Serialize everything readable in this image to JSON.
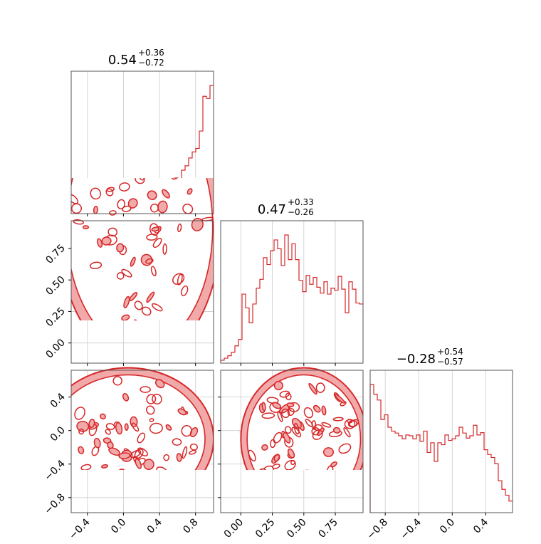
{
  "colors": {
    "accent": "#d62728",
    "accent_fill": "#f1a9aa",
    "grid": "#cccccc",
    "axis": "#000000"
  },
  "chart_data": {
    "type": "corner",
    "parameters": [
      "",
      "",
      ""
    ],
    "grid": true,
    "titles": [
      {
        "median": "0.54",
        "plus": "+0.36",
        "minus": "−0.72"
      },
      {
        "median": "0.47",
        "plus": "+0.33",
        "minus": "−0.26"
      },
      {
        "median": "−0.28",
        "plus": "+0.54",
        "minus": "−0.57"
      }
    ],
    "axes": [
      {
        "range": [
          -0.58,
          1.0
        ],
        "ticks": [
          -0.4,
          0.0,
          0.4,
          0.8
        ],
        "tick_labels": [
          "−0.4",
          "0.0",
          "0.4",
          "0.8"
        ]
      },
      {
        "range": [
          -0.16,
          0.97
        ],
        "ticks": [
          0.0,
          0.25,
          0.5,
          0.75
        ],
        "tick_labels": [
          "0.00",
          "0.25",
          "0.50",
          "0.75"
        ]
      },
      {
        "range": [
          -0.98,
          0.72
        ],
        "ticks": [
          -0.8,
          -0.4,
          0.0,
          0.4
        ],
        "tick_labels": [
          "−0.8",
          "−0.4",
          "0.0",
          "0.4"
        ]
      }
    ],
    "histograms": [
      {
        "param": 0,
        "bins": 40,
        "counts": [
          5,
          18,
          35,
          44,
          42,
          45,
          60,
          62,
          68,
          62,
          72,
          74,
          66,
          58,
          64,
          52,
          45,
          44,
          40,
          38,
          46,
          50,
          46,
          40,
          50,
          48,
          62,
          60,
          66,
          82,
          80,
          100,
          110,
          128,
          142,
          150,
          190,
          270,
          265,
          295
        ]
      },
      {
        "param": 1,
        "bins": 40,
        "counts": [
          6,
          10,
          15,
          22,
          35,
          48,
          140,
          112,
          82,
          120,
          152,
          170,
          214,
          200,
          228,
          250,
          232,
          198,
          260,
          210,
          242,
          210,
          168,
          145,
          178,
          160,
          174,
          154,
          142,
          165,
          140,
          152,
          148,
          176,
          150,
          102,
          165,
          150,
          122,
          120
        ]
      },
      {
        "param": 2,
        "bins": 40,
        "counts": [
          330,
          305,
          290,
          240,
          252,
          220,
          210,
          205,
          198,
          190,
          200,
          198,
          190,
          200,
          184,
          210,
          155,
          180,
          132,
          180,
          175,
          200,
          186,
          190,
          198,
          220,
          205,
          192,
          198,
          225,
          200,
          206,
          162,
          150,
          142,
          126,
          82,
          60,
          45,
          30
        ]
      }
    ],
    "scatter_2d": [
      {
        "x_param": 0,
        "y_param": 1,
        "support": "disk",
        "center": [
          0.18,
          0.92
        ],
        "radius_x": 0.9,
        "radius_y": 1.08,
        "density": "concentrated toward the outer edge"
      },
      {
        "x_param": 0,
        "y_param": 2,
        "support": "disk",
        "center": [
          0.05,
          -0.1
        ],
        "radius_x": 0.95,
        "radius_y": 0.85,
        "density": "concentrated toward the outer edge"
      },
      {
        "x_param": 1,
        "y_param": 2,
        "support": "ellipse",
        "center": [
          0.5,
          -0.1
        ],
        "radius_x": 0.5,
        "radius_y": 0.85,
        "density": "concentrated toward the outer edge"
      }
    ]
  },
  "figure": {
    "title_suffix_hint": ""
  }
}
